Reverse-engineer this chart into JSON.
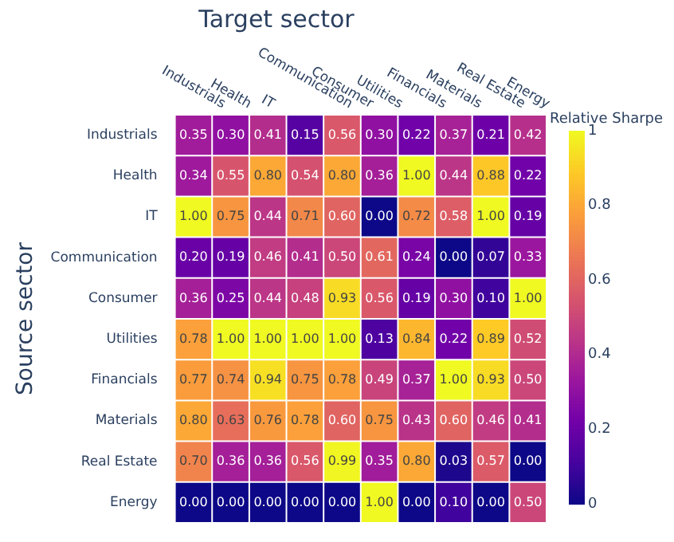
{
  "chart_data": {
    "type": "heatmap",
    "title": "Target sector",
    "ylabel": "Source sector",
    "clabel": "Relative Sharpe",
    "categories": [
      "Industrials",
      "Health",
      "IT",
      "Communication",
      "Consumer",
      "Utilities",
      "Financials",
      "Materials",
      "Real Estate",
      "Energy"
    ],
    "y_categories": [
      "Industrials",
      "Health",
      "IT",
      "Communication",
      "Consumer",
      "Utilities",
      "Financials",
      "Materials",
      "Real Estate",
      "Energy"
    ],
    "cells": [
      [
        0.35,
        0.3,
        0.41,
        0.15,
        0.56,
        0.3,
        0.22,
        0.37,
        0.21,
        0.42
      ],
      [
        0.34,
        0.55,
        0.8,
        0.54,
        0.8,
        0.36,
        1.0,
        0.44,
        0.88,
        0.22
      ],
      [
        1.0,
        0.75,
        0.44,
        0.71,
        0.6,
        0.0,
        0.72,
        0.58,
        1.0,
        0.19
      ],
      [
        0.2,
        0.19,
        0.46,
        0.41,
        0.5,
        0.61,
        0.24,
        0.0,
        0.07,
        0.33
      ],
      [
        0.36,
        0.25,
        0.44,
        0.48,
        0.93,
        0.56,
        0.19,
        0.3,
        0.1,
        1.0
      ],
      [
        0.78,
        1.0,
        1.0,
        1.0,
        1.0,
        0.13,
        0.84,
        0.22,
        0.89,
        0.52
      ],
      [
        0.77,
        0.74,
        0.94,
        0.75,
        0.78,
        0.49,
        0.37,
        1.0,
        0.93,
        0.5
      ],
      [
        0.8,
        0.63,
        0.76,
        0.78,
        0.6,
        0.75,
        0.43,
        0.6,
        0.46,
        0.41
      ],
      [
        0.7,
        0.36,
        0.36,
        0.56,
        0.99,
        0.35,
        0.8,
        0.03,
        0.57,
        0.0
      ],
      [
        0.0,
        0.0,
        0.0,
        0.0,
        0.0,
        1.0,
        0.0,
        0.1,
        0.0,
        0.5
      ]
    ],
    "cell_labels": [
      [
        "0.35",
        "0.30",
        "0.41",
        "0.15",
        "0.56",
        "0.30",
        "0.22",
        "0.37",
        "0.21",
        "0.42"
      ],
      [
        "0.34",
        "0.55",
        "0.80",
        "0.54",
        "0.80",
        "0.36",
        "1.00",
        "0.44",
        "0.88",
        "0.22"
      ],
      [
        "1.00",
        "0.75",
        "0.44",
        "0.71",
        "0.60",
        "0.00",
        "0.72",
        "0.58",
        "1.00",
        "0.19"
      ],
      [
        "0.20",
        "0.19",
        "0.46",
        "0.41",
        "0.50",
        "0.61",
        "0.24",
        "0.00",
        "0.07",
        "0.33"
      ],
      [
        "0.36",
        "0.25",
        "0.44",
        "0.48",
        "0.93",
        "0.56",
        "0.19",
        "0.30",
        "0.10",
        "1.00"
      ],
      [
        "0.78",
        "1.00",
        "1.00",
        "1.00",
        "1.00",
        "0.13",
        "0.84",
        "0.22",
        "0.89",
        "0.52"
      ],
      [
        "0.77",
        "0.74",
        "0.94",
        "0.75",
        "0.78",
        "0.49",
        "0.37",
        "1.00",
        "0.93",
        "0.50"
      ],
      [
        "0.80",
        "0.63",
        "0.76",
        "0.78",
        "0.60",
        "0.75",
        "0.43",
        "0.60",
        "0.46",
        "0.41"
      ],
      [
        "0.70",
        "0.36",
        "0.36",
        "0.56",
        "0.99",
        "0.35",
        "0.80",
        "0.03",
        "0.57",
        "0.00"
      ],
      [
        "0.00",
        "0.00",
        "0.00",
        "0.00",
        "0.00",
        "1.00",
        "0.00",
        "0.10",
        "0.00",
        "0.50"
      ]
    ],
    "data_labels": true,
    "clim": [
      0,
      1
    ],
    "cticks": [
      0,
      0.2,
      0.4,
      0.6,
      0.8,
      1
    ]
  }
}
